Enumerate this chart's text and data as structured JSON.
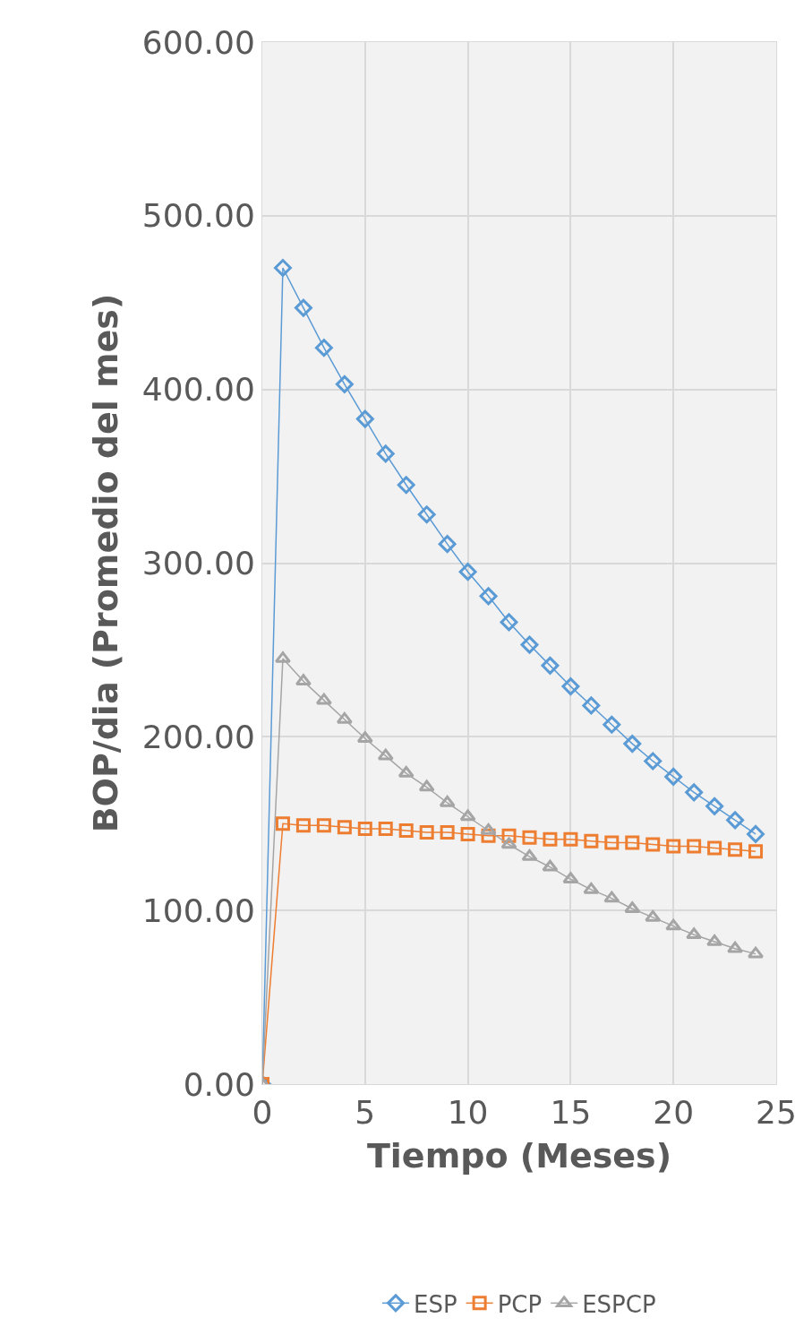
{
  "chart_data": {
    "type": "line",
    "xlabel": "Tiempo (Meses)",
    "ylabel": "BOP/dia (Promedio del mes)",
    "x": [
      0,
      1,
      2,
      3,
      4,
      5,
      6,
      7,
      8,
      9,
      10,
      11,
      12,
      13,
      14,
      15,
      16,
      17,
      18,
      19,
      20,
      21,
      22,
      23,
      24
    ],
    "series": [
      {
        "name": "ESP",
        "color": "#5b9bd5",
        "marker": "diamond",
        "values": [
          0,
          470,
          447,
          424,
          403,
          383,
          363,
          345,
          328,
          311,
          295,
          281,
          266,
          253,
          241,
          229,
          218,
          207,
          196,
          186,
          177,
          168,
          160,
          152,
          144
        ]
      },
      {
        "name": "PCP",
        "color": "#ed7d31",
        "marker": "square",
        "values": [
          0,
          150,
          149,
          149,
          148,
          147,
          147,
          146,
          145,
          145,
          144,
          143,
          143,
          142,
          141,
          141,
          140,
          139,
          139,
          138,
          137,
          137,
          136,
          135,
          134
        ]
      },
      {
        "name": "ESPCP",
        "color": "#a5a5a5",
        "marker": "triangle",
        "values": [
          0,
          245,
          232,
          221,
          210,
          199,
          189,
          179,
          171,
          162,
          154,
          146,
          138,
          131,
          125,
          118,
          112,
          107,
          101,
          96,
          91,
          86,
          82,
          78,
          75
        ]
      }
    ],
    "xlim": [
      0,
      25
    ],
    "xticks": [
      0,
      5,
      10,
      15,
      20,
      25
    ],
    "ylim": [
      0,
      600
    ],
    "yticks": [
      {
        "value": 0,
        "label": "0.00"
      },
      {
        "value": 100,
        "label": "100.00"
      },
      {
        "value": 200,
        "label": "200.00"
      },
      {
        "value": 300,
        "label": "300.00"
      },
      {
        "value": 400,
        "label": "400.00"
      },
      {
        "value": 500,
        "label": "500.00"
      },
      {
        "value": 600,
        "label": "600.00"
      }
    ],
    "grid": true,
    "legend": "bottom",
    "line_style": "solid"
  }
}
